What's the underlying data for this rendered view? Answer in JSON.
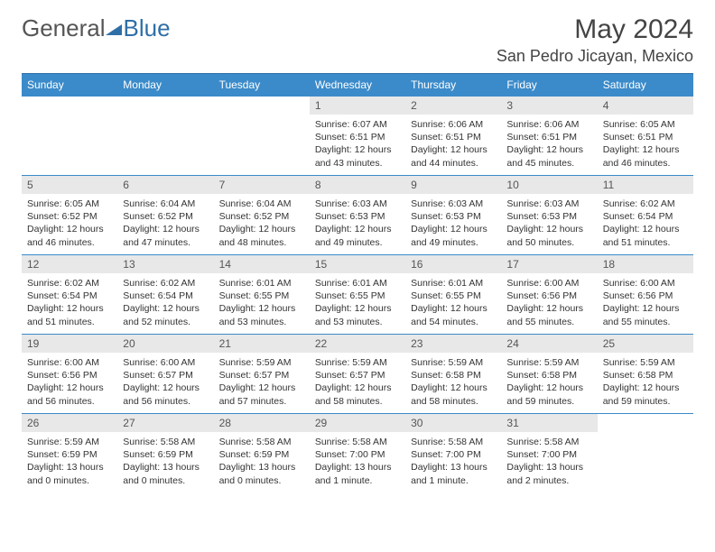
{
  "brand": {
    "part1": "General",
    "part2": "Blue"
  },
  "title": {
    "month": "May 2024",
    "location": "San Pedro Jicayan, Mexico"
  },
  "colors": {
    "header_bg": "#3b8bca",
    "header_text": "#ffffff",
    "row_border": "#3b8bca",
    "daynum_bg": "#e8e8e8",
    "text": "#333333"
  },
  "daysOfWeek": [
    "Sunday",
    "Monday",
    "Tuesday",
    "Wednesday",
    "Thursday",
    "Friday",
    "Saturday"
  ],
  "weeks": [
    [
      {
        "n": "",
        "sr": "",
        "ss": "",
        "dl": ""
      },
      {
        "n": "",
        "sr": "",
        "ss": "",
        "dl": ""
      },
      {
        "n": "",
        "sr": "",
        "ss": "",
        "dl": ""
      },
      {
        "n": "1",
        "sr": "Sunrise: 6:07 AM",
        "ss": "Sunset: 6:51 PM",
        "dl": "Daylight: 12 hours and 43 minutes."
      },
      {
        "n": "2",
        "sr": "Sunrise: 6:06 AM",
        "ss": "Sunset: 6:51 PM",
        "dl": "Daylight: 12 hours and 44 minutes."
      },
      {
        "n": "3",
        "sr": "Sunrise: 6:06 AM",
        "ss": "Sunset: 6:51 PM",
        "dl": "Daylight: 12 hours and 45 minutes."
      },
      {
        "n": "4",
        "sr": "Sunrise: 6:05 AM",
        "ss": "Sunset: 6:51 PM",
        "dl": "Daylight: 12 hours and 46 minutes."
      }
    ],
    [
      {
        "n": "5",
        "sr": "Sunrise: 6:05 AM",
        "ss": "Sunset: 6:52 PM",
        "dl": "Daylight: 12 hours and 46 minutes."
      },
      {
        "n": "6",
        "sr": "Sunrise: 6:04 AM",
        "ss": "Sunset: 6:52 PM",
        "dl": "Daylight: 12 hours and 47 minutes."
      },
      {
        "n": "7",
        "sr": "Sunrise: 6:04 AM",
        "ss": "Sunset: 6:52 PM",
        "dl": "Daylight: 12 hours and 48 minutes."
      },
      {
        "n": "8",
        "sr": "Sunrise: 6:03 AM",
        "ss": "Sunset: 6:53 PM",
        "dl": "Daylight: 12 hours and 49 minutes."
      },
      {
        "n": "9",
        "sr": "Sunrise: 6:03 AM",
        "ss": "Sunset: 6:53 PM",
        "dl": "Daylight: 12 hours and 49 minutes."
      },
      {
        "n": "10",
        "sr": "Sunrise: 6:03 AM",
        "ss": "Sunset: 6:53 PM",
        "dl": "Daylight: 12 hours and 50 minutes."
      },
      {
        "n": "11",
        "sr": "Sunrise: 6:02 AM",
        "ss": "Sunset: 6:54 PM",
        "dl": "Daylight: 12 hours and 51 minutes."
      }
    ],
    [
      {
        "n": "12",
        "sr": "Sunrise: 6:02 AM",
        "ss": "Sunset: 6:54 PM",
        "dl": "Daylight: 12 hours and 51 minutes."
      },
      {
        "n": "13",
        "sr": "Sunrise: 6:02 AM",
        "ss": "Sunset: 6:54 PM",
        "dl": "Daylight: 12 hours and 52 minutes."
      },
      {
        "n": "14",
        "sr": "Sunrise: 6:01 AM",
        "ss": "Sunset: 6:55 PM",
        "dl": "Daylight: 12 hours and 53 minutes."
      },
      {
        "n": "15",
        "sr": "Sunrise: 6:01 AM",
        "ss": "Sunset: 6:55 PM",
        "dl": "Daylight: 12 hours and 53 minutes."
      },
      {
        "n": "16",
        "sr": "Sunrise: 6:01 AM",
        "ss": "Sunset: 6:55 PM",
        "dl": "Daylight: 12 hours and 54 minutes."
      },
      {
        "n": "17",
        "sr": "Sunrise: 6:00 AM",
        "ss": "Sunset: 6:56 PM",
        "dl": "Daylight: 12 hours and 55 minutes."
      },
      {
        "n": "18",
        "sr": "Sunrise: 6:00 AM",
        "ss": "Sunset: 6:56 PM",
        "dl": "Daylight: 12 hours and 55 minutes."
      }
    ],
    [
      {
        "n": "19",
        "sr": "Sunrise: 6:00 AM",
        "ss": "Sunset: 6:56 PM",
        "dl": "Daylight: 12 hours and 56 minutes."
      },
      {
        "n": "20",
        "sr": "Sunrise: 6:00 AM",
        "ss": "Sunset: 6:57 PM",
        "dl": "Daylight: 12 hours and 56 minutes."
      },
      {
        "n": "21",
        "sr": "Sunrise: 5:59 AM",
        "ss": "Sunset: 6:57 PM",
        "dl": "Daylight: 12 hours and 57 minutes."
      },
      {
        "n": "22",
        "sr": "Sunrise: 5:59 AM",
        "ss": "Sunset: 6:57 PM",
        "dl": "Daylight: 12 hours and 58 minutes."
      },
      {
        "n": "23",
        "sr": "Sunrise: 5:59 AM",
        "ss": "Sunset: 6:58 PM",
        "dl": "Daylight: 12 hours and 58 minutes."
      },
      {
        "n": "24",
        "sr": "Sunrise: 5:59 AM",
        "ss": "Sunset: 6:58 PM",
        "dl": "Daylight: 12 hours and 59 minutes."
      },
      {
        "n": "25",
        "sr": "Sunrise: 5:59 AM",
        "ss": "Sunset: 6:58 PM",
        "dl": "Daylight: 12 hours and 59 minutes."
      }
    ],
    [
      {
        "n": "26",
        "sr": "Sunrise: 5:59 AM",
        "ss": "Sunset: 6:59 PM",
        "dl": "Daylight: 13 hours and 0 minutes."
      },
      {
        "n": "27",
        "sr": "Sunrise: 5:58 AM",
        "ss": "Sunset: 6:59 PM",
        "dl": "Daylight: 13 hours and 0 minutes."
      },
      {
        "n": "28",
        "sr": "Sunrise: 5:58 AM",
        "ss": "Sunset: 6:59 PM",
        "dl": "Daylight: 13 hours and 0 minutes."
      },
      {
        "n": "29",
        "sr": "Sunrise: 5:58 AM",
        "ss": "Sunset: 7:00 PM",
        "dl": "Daylight: 13 hours and 1 minute."
      },
      {
        "n": "30",
        "sr": "Sunrise: 5:58 AM",
        "ss": "Sunset: 7:00 PM",
        "dl": "Daylight: 13 hours and 1 minute."
      },
      {
        "n": "31",
        "sr": "Sunrise: 5:58 AM",
        "ss": "Sunset: 7:00 PM",
        "dl": "Daylight: 13 hours and 2 minutes."
      },
      {
        "n": "",
        "sr": "",
        "ss": "",
        "dl": ""
      }
    ]
  ]
}
